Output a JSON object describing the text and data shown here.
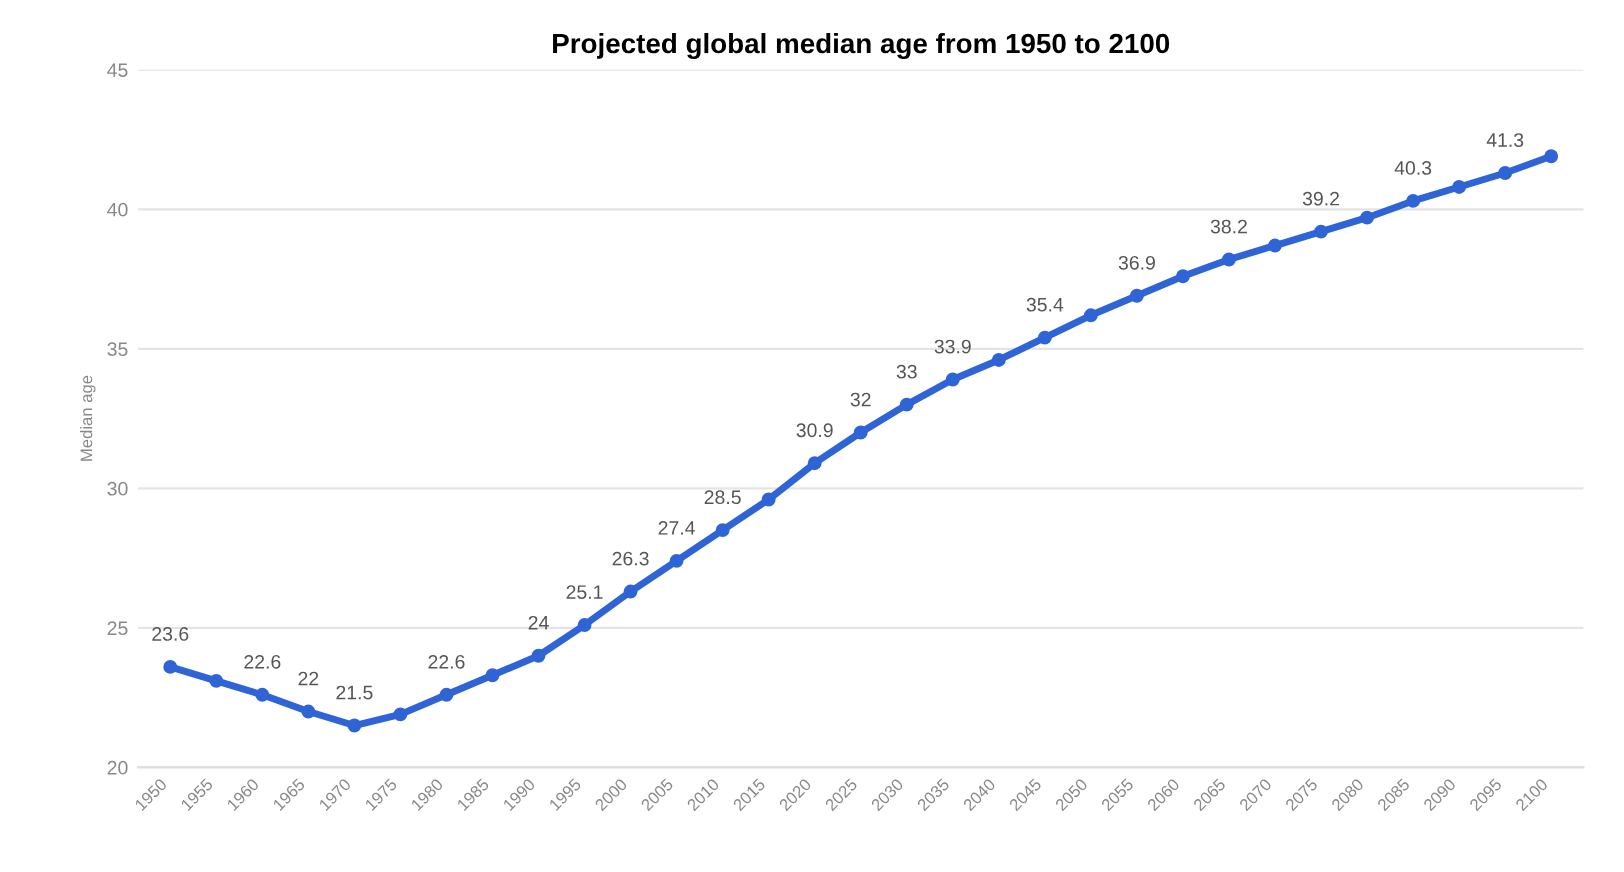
{
  "chart_data": {
    "type": "line",
    "title": "Projected global median age from 1950 to 2100",
    "ylabel": "Median age",
    "categories": [
      "1950",
      "1955",
      "1960",
      "1965",
      "1970",
      "1975",
      "1980",
      "1985",
      "1990",
      "1995",
      "2000",
      "2005",
      "2010",
      "2015",
      "2020",
      "2025",
      "2030",
      "2035",
      "2040",
      "2045",
      "2050",
      "2055",
      "2060",
      "2065",
      "2070",
      "2075",
      "2080",
      "2085",
      "2090",
      "2095",
      "2100"
    ],
    "series": [
      {
        "color": "#2f64d6",
        "values": [
          23.6,
          23.1,
          22.6,
          22,
          21.5,
          21.9,
          22.6,
          23.3,
          24,
          25.1,
          26.3,
          27.4,
          28.5,
          29.6,
          30.9,
          32,
          33,
          33.9,
          34.6,
          35.4,
          36.2,
          36.9,
          37.6,
          38.2,
          38.7,
          39.2,
          39.7,
          40.3,
          40.8,
          41.3,
          41.9
        ],
        "value_labels": [
          "23.6",
          null,
          "22.6",
          "22",
          "21.5",
          null,
          "22.6",
          null,
          "24",
          "25.1",
          "26.3",
          "27.4",
          "28.5",
          null,
          "30.9",
          "32",
          "33",
          "33.9",
          null,
          "35.4",
          null,
          "36.9",
          null,
          "38.2",
          null,
          "39.2",
          null,
          "40.3",
          null,
          "41.3",
          null
        ]
      }
    ],
    "ylim": [
      20,
      45
    ],
    "yticks": [
      20,
      25,
      30,
      35,
      40,
      45
    ],
    "grid": "y",
    "marker": "circle",
    "line_style": "solid"
  }
}
